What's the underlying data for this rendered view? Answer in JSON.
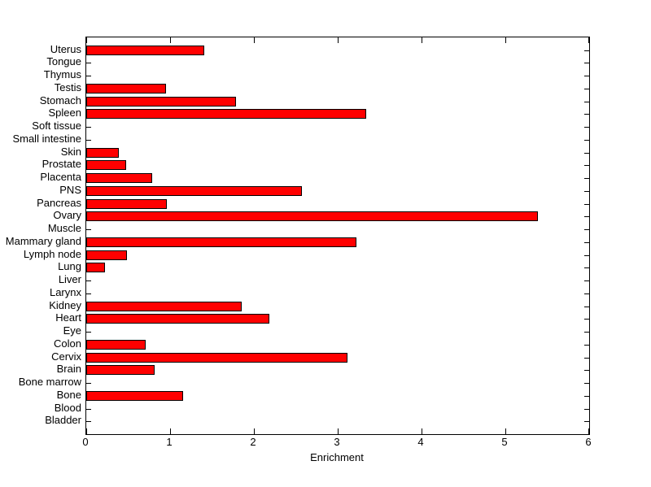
{
  "figure": {
    "background": "#ffffff"
  },
  "chart_data": {
    "type": "bar",
    "orientation": "horizontal",
    "title": "",
    "xlabel": "Enrichment",
    "ylabel": "",
    "xlim": [
      0,
      6
    ],
    "x_ticks": [
      0,
      1,
      2,
      3,
      4,
      5,
      6
    ],
    "grid": false,
    "legend": "none",
    "bar_color": "#ff0000",
    "bar_edge_color": "#000000",
    "axis_color": "#000000",
    "category_order": "top-to-bottom",
    "categories": [
      "Uterus",
      "Tongue",
      "Thymus",
      "Testis",
      "Stomach",
      "Spleen",
      "Soft tissue",
      "Small intestine",
      "Skin",
      "Prostate",
      "Placenta",
      "PNS",
      "Pancreas",
      "Ovary",
      "Muscle",
      "Mammary gland",
      "Lymph node",
      "Lung",
      "Liver",
      "Larynx",
      "Kidney",
      "Heart",
      "Eye",
      "Colon",
      "Cervix",
      "Brain",
      "Bone marrow",
      "Bone",
      "Blood",
      "Bladder"
    ],
    "values": [
      1.41,
      0,
      0,
      0.95,
      1.79,
      3.34,
      0,
      0,
      0.39,
      0.48,
      0.79,
      2.57,
      0.96,
      5.39,
      0,
      3.22,
      0.49,
      0.22,
      0,
      0,
      1.85,
      2.18,
      0,
      0.71,
      3.12,
      0.82,
      0,
      1.16,
      0,
      0
    ]
  }
}
